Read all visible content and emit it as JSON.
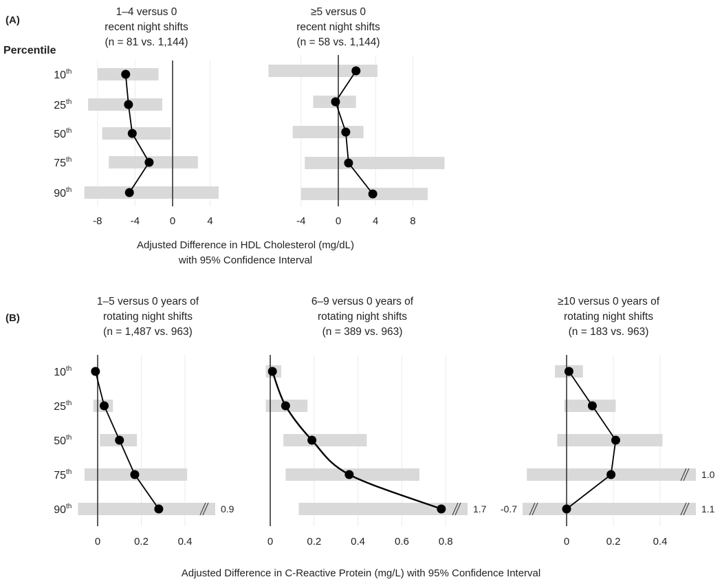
{
  "figure": {
    "panel_a_label": "(A)",
    "panel_b_label": "(B)",
    "percentile_header": "Percentile",
    "row_labels": [
      {
        "num": "10",
        "sup": "th"
      },
      {
        "num": "25",
        "sup": "th"
      },
      {
        "num": "50",
        "sup": "th"
      },
      {
        "num": "75",
        "sup": "th"
      },
      {
        "num": "90",
        "sup": "th"
      }
    ],
    "panel_a_xlabel_line1": "Adjusted Difference in HDL Cholesterol (mg/dL)",
    "panel_a_xlabel_line2": "with 95% Confidence Interval",
    "panel_b_xlabel": "Adjusted Difference in C-Reactive Protein (mg/L) with 95% Confidence Interval"
  },
  "colors": {
    "ci_bar": "#d9d9d9",
    "point": "#000000",
    "line": "#000000",
    "zero_line": "#333333",
    "grid": "#ebebeb",
    "text": "#222222"
  },
  "chart_data": [
    {
      "type": "forest",
      "panel": "A",
      "title": [
        "1–4 versus 0",
        "recent night shifts",
        "(n = 81 vs. 1,144)"
      ],
      "xlabel": "Adjusted Difference in HDL Cholesterol (mg/dL) with 95% Confidence Interval",
      "categories": [
        "10th",
        "25th",
        "50th",
        "75th",
        "90th"
      ],
      "xlim": [
        -10,
        5
      ],
      "xticks": [
        -8,
        -4,
        0,
        4
      ],
      "tick_labels": [
        "-8",
        "-4",
        "0",
        "4"
      ],
      "grid": true,
      "values": [
        -5.0,
        -4.7,
        -4.3,
        -2.5,
        -4.6
      ],
      "ci_low": [
        -8.0,
        -9.0,
        -7.5,
        -6.8,
        -9.4
      ],
      "ci_high": [
        -1.5,
        -1.1,
        -0.2,
        2.7,
        4.9
      ],
      "breaks_low": [
        null,
        null,
        null,
        null,
        null
      ],
      "breaks_high": [
        null,
        null,
        null,
        null,
        null
      ]
    },
    {
      "type": "forest",
      "panel": "A",
      "title": [
        "≥5 versus 0",
        "recent night shifts",
        "(n = 58 vs. 1,144)"
      ],
      "xlabel": "Adjusted Difference in HDL Cholesterol (mg/dL) with 95% Confidence Interval",
      "categories": [
        "10th",
        "25th",
        "50th",
        "75th",
        "90th"
      ],
      "xlim": [
        -8,
        12
      ],
      "xticks": [
        -4,
        0,
        4,
        8
      ],
      "tick_labels": [
        "-4",
        "0",
        "4",
        "8"
      ],
      "grid": true,
      "values": [
        1.9,
        -0.3,
        0.8,
        1.1,
        3.7
      ],
      "ci_low": [
        -7.5,
        -2.7,
        -4.9,
        -3.6,
        -4.0
      ],
      "ci_high": [
        4.2,
        1.9,
        2.7,
        11.4,
        9.6
      ],
      "breaks_low": [
        null,
        null,
        null,
        null,
        null
      ],
      "breaks_high": [
        null,
        null,
        null,
        null,
        null
      ]
    },
    {
      "type": "forest",
      "panel": "B",
      "title": [
        "1–5 versus 0 years of",
        "rotating night shifts",
        "(n = 1,487 vs. 963)"
      ],
      "xlabel": "Adjusted Difference in C-Reactive Protein (mg/L) with 95% Confidence Interval",
      "categories": [
        "10th",
        "25th",
        "50th",
        "75th",
        "90th"
      ],
      "xlim": [
        -0.1,
        0.55
      ],
      "xticks": [
        0,
        0.2,
        0.4
      ],
      "tick_labels": [
        "0",
        "0.2",
        "0.4"
      ],
      "grid": true,
      "values": [
        -0.01,
        0.03,
        0.1,
        0.17,
        0.28
      ],
      "ci_low": [
        -0.01,
        -0.02,
        0.01,
        -0.06,
        -0.09
      ],
      "ci_high": [
        -0.01,
        0.07,
        0.18,
        0.41,
        0.9
      ],
      "breaks_low": [
        null,
        null,
        null,
        null,
        null
      ],
      "breaks_high": [
        null,
        null,
        null,
        null,
        "0.9"
      ]
    },
    {
      "type": "forest",
      "panel": "B",
      "title": [
        "6–9 versus 0 years of",
        "rotating night shifts",
        "(n = 389 vs. 963)"
      ],
      "xlabel": "Adjusted Difference in C-Reactive Protein (mg/L) with 95% Confidence Interval",
      "categories": [
        "10th",
        "25th",
        "50th",
        "75th",
        "90th"
      ],
      "xlim": [
        -0.02,
        0.9
      ],
      "xticks": [
        0,
        0.2,
        0.4,
        0.6,
        0.8
      ],
      "tick_labels": [
        "0",
        "0.2",
        "0.4",
        "0.6",
        "0.8"
      ],
      "grid": true,
      "smooth": true,
      "values": [
        0.01,
        0.07,
        0.19,
        0.36,
        0.78
      ],
      "ci_low": [
        -0.02,
        -0.02,
        0.06,
        0.07,
        0.13
      ],
      "ci_high": [
        0.05,
        0.17,
        0.44,
        0.68,
        1.7
      ],
      "breaks_low": [
        null,
        null,
        null,
        null,
        null
      ],
      "breaks_high": [
        null,
        null,
        null,
        null,
        "1.7"
      ]
    },
    {
      "type": "forest",
      "panel": "B",
      "title": [
        "≥10 versus 0 years of",
        "rotating night shifts",
        "(n = 183 vs. 963)"
      ],
      "xlabel": "Adjusted Difference in C-Reactive Protein (mg/L) with 95% Confidence Interval",
      "categories": [
        "10th",
        "25th",
        "50th",
        "75th",
        "90th"
      ],
      "xlim": [
        -0.18,
        0.55
      ],
      "xticks": [
        0,
        0.2,
        0.4
      ],
      "tick_labels": [
        "0",
        "0.2",
        "0.4"
      ],
      "grid": true,
      "values": [
        0.01,
        0.11,
        0.21,
        0.19,
        0.0
      ],
      "ci_low": [
        -0.05,
        -0.01,
        -0.04,
        -0.17,
        -0.7
      ],
      "ci_high": [
        0.07,
        0.21,
        0.41,
        1.0,
        1.1
      ],
      "breaks_low": [
        null,
        null,
        null,
        null,
        "-0.7"
      ],
      "breaks_high": [
        null,
        null,
        null,
        "1.0",
        "1.1"
      ]
    }
  ]
}
